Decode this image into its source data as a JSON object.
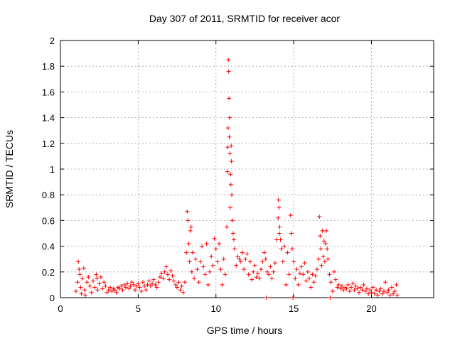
{
  "chart_data": {
    "type": "scatter",
    "title": "Day 307 of 2011, SRMTID for receiver acor",
    "xlabel": "GPS time / hours",
    "ylabel": "SRMTID / TECUs",
    "xlim": [
      0,
      24
    ],
    "ylim": [
      0,
      2
    ],
    "xticks": [
      0,
      5,
      10,
      15,
      20
    ],
    "yticks": [
      0,
      0.2,
      0.4,
      0.6,
      0.8,
      1,
      1.2,
      1.4,
      1.6,
      1.8,
      2
    ],
    "xtick_labels": [
      "0",
      "5",
      "10",
      "15",
      "20"
    ],
    "ytick_labels": [
      "0",
      "0.2",
      "0.4",
      "0.6",
      "0.8",
      "1",
      "1.2",
      "1.4",
      "1.6",
      "1.8",
      "2"
    ],
    "grid": true,
    "marker": "plus",
    "color": "#ff0000",
    "series": [
      {
        "points": [
          [
            1.0,
            0.05
          ],
          [
            1.1,
            0.12
          ],
          [
            1.15,
            0.28
          ],
          [
            1.2,
            0.22
          ],
          [
            1.25,
            0.18
          ],
          [
            1.3,
            0.08
          ],
          [
            1.35,
            0.03
          ],
          [
            1.4,
            0.15
          ],
          [
            1.5,
            0.23
          ],
          [
            1.55,
            0.06
          ],
          [
            1.6,
            0.02
          ],
          [
            1.7,
            0.12
          ],
          [
            1.8,
            0.16
          ],
          [
            1.9,
            0.09
          ],
          [
            2.0,
            0.04
          ],
          [
            2.1,
            0.13
          ],
          [
            2.2,
            0.08
          ],
          [
            2.3,
            0.18
          ],
          [
            2.35,
            0.15
          ],
          [
            2.4,
            0.06
          ],
          [
            2.5,
            0.11
          ],
          [
            2.6,
            0.16
          ],
          [
            2.7,
            0.07
          ],
          [
            2.8,
            0.12
          ],
          [
            2.9,
            0.09
          ],
          [
            3.0,
            0.04
          ],
          [
            3.1,
            0.06
          ],
          [
            3.2,
            0.08
          ],
          [
            3.3,
            0.05
          ],
          [
            3.4,
            0.07
          ],
          [
            3.5,
            0.06
          ],
          [
            3.6,
            0.04
          ],
          [
            3.7,
            0.08
          ],
          [
            3.8,
            0.07
          ],
          [
            3.9,
            0.09
          ],
          [
            4.0,
            0.06
          ],
          [
            4.1,
            0.1
          ],
          [
            4.2,
            0.08
          ],
          [
            4.3,
            0.11
          ],
          [
            4.4,
            0.07
          ],
          [
            4.5,
            0.09
          ],
          [
            4.6,
            0.12
          ],
          [
            4.7,
            0.1
          ],
          [
            4.8,
            0.06
          ],
          [
            4.9,
            0.09
          ],
          [
            5.0,
            0.11
          ],
          [
            5.1,
            0.08
          ],
          [
            5.2,
            0.05
          ],
          [
            5.3,
            0.12
          ],
          [
            5.4,
            0.09
          ],
          [
            5.5,
            0.06
          ],
          [
            5.6,
            0.1
          ],
          [
            5.7,
            0.13
          ],
          [
            5.8,
            0.09
          ],
          [
            5.9,
            0.11
          ],
          [
            6.0,
            0.14
          ],
          [
            6.1,
            0.1
          ],
          [
            6.2,
            0.08
          ],
          [
            6.3,
            0.12
          ],
          [
            6.4,
            0.16
          ],
          [
            6.5,
            0.19
          ],
          [
            6.6,
            0.15
          ],
          [
            6.7,
            0.2
          ],
          [
            6.8,
            0.24
          ],
          [
            6.9,
            0.18
          ],
          [
            7.0,
            0.14
          ],
          [
            7.1,
            0.21
          ],
          [
            7.2,
            0.17
          ],
          [
            7.3,
            0.13
          ],
          [
            7.4,
            0.1
          ],
          [
            7.5,
            0.08
          ],
          [
            7.6,
            0.12
          ],
          [
            7.7,
            0.06
          ],
          [
            7.8,
            0.09
          ],
          [
            7.9,
            0.04
          ],
          [
            8.0,
            0.12
          ],
          [
            8.1,
            0.35
          ],
          [
            8.15,
            0.67
          ],
          [
            8.2,
            0.6
          ],
          [
            8.25,
            0.42
          ],
          [
            8.3,
            0.28
          ],
          [
            8.35,
            0.52
          ],
          [
            8.4,
            0.55
          ],
          [
            8.45,
            0.2
          ],
          [
            8.5,
            0.35
          ],
          [
            8.6,
            0.15
          ],
          [
            8.7,
            0.3
          ],
          [
            8.8,
            0.22
          ],
          [
            8.9,
            0.12
          ],
          [
            9.0,
            0.28
          ],
          [
            9.1,
            0.4
          ],
          [
            9.2,
            0.24
          ],
          [
            9.3,
            0.18
          ],
          [
            9.4,
            0.42
          ],
          [
            9.5,
            0.1
          ],
          [
            9.6,
            0.2
          ],
          [
            9.7,
            0.32
          ],
          [
            9.8,
            0.25
          ],
          [
            9.9,
            0.46
          ],
          [
            10.0,
            0.38
          ],
          [
            10.1,
            0.28
          ],
          [
            10.2,
            0.42
          ],
          [
            10.3,
            0.22
          ],
          [
            10.4,
            0.1
          ],
          [
            10.5,
            0.3
          ],
          [
            10.6,
            0.18
          ],
          [
            10.7,
            0.55
          ],
          [
            10.72,
            0.98
          ],
          [
            10.75,
            1.17
          ],
          [
            10.78,
            1.32
          ],
          [
            10.8,
            1.85
          ],
          [
            10.82,
            1.76
          ],
          [
            10.84,
            1.55
          ],
          [
            10.86,
            1.25
          ],
          [
            10.88,
            1.4
          ],
          [
            10.9,
            1.12
          ],
          [
            10.92,
            0.7
          ],
          [
            10.94,
            0.96
          ],
          [
            10.96,
            0.88
          ],
          [
            10.98,
            1.18
          ],
          [
            11.0,
            1.06
          ],
          [
            11.02,
            0.8
          ],
          [
            11.05,
            0.6
          ],
          [
            11.1,
            0.5
          ],
          [
            11.15,
            0.45
          ],
          [
            11.2,
            0.38
          ],
          [
            11.3,
            0.25
          ],
          [
            11.4,
            0.32
          ],
          [
            11.5,
            0.3
          ],
          [
            11.6,
            0.28
          ],
          [
            11.7,
            0.35
          ],
          [
            11.8,
            0.22
          ],
          [
            11.9,
            0.3
          ],
          [
            12.0,
            0.34
          ],
          [
            12.1,
            0.18
          ],
          [
            12.2,
            0.28
          ],
          [
            12.3,
            0.14
          ],
          [
            12.4,
            0.2
          ],
          [
            12.5,
            0.25
          ],
          [
            12.6,
            0.16
          ],
          [
            12.7,
            0.19
          ],
          [
            12.8,
            0.15
          ],
          [
            12.9,
            0.22
          ],
          [
            13.0,
            0.28
          ],
          [
            13.1,
            0.35
          ],
          [
            13.2,
            0.3
          ],
          [
            13.25,
            0.0
          ],
          [
            13.3,
            0.2
          ],
          [
            13.4,
            0.18
          ],
          [
            13.5,
            0.24
          ],
          [
            13.6,
            0.15
          ],
          [
            13.7,
            0.2
          ],
          [
            13.8,
            0.27
          ],
          [
            13.9,
            0.45
          ],
          [
            14.0,
            0.62
          ],
          [
            14.02,
            0.76
          ],
          [
            14.05,
            0.7
          ],
          [
            14.08,
            0.5
          ],
          [
            14.1,
            0.55
          ],
          [
            14.15,
            0.45
          ],
          [
            14.2,
            0.38
          ],
          [
            14.3,
            0.28
          ],
          [
            14.4,
            0.4
          ],
          [
            14.5,
            0.1
          ],
          [
            14.6,
            0.35
          ],
          [
            14.7,
            0.18
          ],
          [
            14.8,
            0.64
          ],
          [
            14.85,
            0.5
          ],
          [
            14.9,
            0.38
          ],
          [
            14.95,
            0.0
          ],
          [
            15.0,
            0.28
          ],
          [
            15.1,
            0.15
          ],
          [
            15.2,
            0.22
          ],
          [
            15.3,
            0.1
          ],
          [
            15.4,
            0.19
          ],
          [
            15.5,
            0.24
          ],
          [
            15.6,
            0.18
          ],
          [
            15.7,
            0.27
          ],
          [
            15.8,
            0.13
          ],
          [
            15.9,
            0.2
          ],
          [
            16.0,
            0.15
          ],
          [
            16.1,
            0.08
          ],
          [
            16.2,
            0.18
          ],
          [
            16.3,
            0.12
          ],
          [
            16.4,
            0.17
          ],
          [
            16.5,
            0.22
          ],
          [
            16.6,
            0.3
          ],
          [
            16.65,
            0.63
          ],
          [
            16.7,
            0.48
          ],
          [
            16.75,
            0.38
          ],
          [
            16.8,
            0.25
          ],
          [
            16.85,
            0.52
          ],
          [
            16.9,
            0.32
          ],
          [
            16.95,
            0.44
          ],
          [
            17.0,
            0.28
          ],
          [
            17.05,
            0.42
          ],
          [
            17.1,
            0.52
          ],
          [
            17.15,
            0.38
          ],
          [
            17.2,
            0.3
          ],
          [
            17.3,
            0.18
          ],
          [
            17.35,
            0.0
          ],
          [
            17.4,
            0.12
          ],
          [
            17.5,
            0.05
          ],
          [
            17.6,
            0.2
          ],
          [
            17.7,
            0.14
          ],
          [
            17.8,
            0.08
          ],
          [
            17.9,
            0.1
          ],
          [
            18.0,
            0.07
          ],
          [
            18.1,
            0.09
          ],
          [
            18.2,
            0.06
          ],
          [
            18.3,
            0.08
          ],
          [
            18.4,
            0.07
          ],
          [
            18.5,
            0.1
          ],
          [
            18.6,
            0.05
          ],
          [
            18.7,
            0.08
          ],
          [
            18.8,
            0.11
          ],
          [
            18.9,
            0.06
          ],
          [
            19.0,
            0.09
          ],
          [
            19.1,
            0.07
          ],
          [
            19.2,
            0.04
          ],
          [
            19.3,
            0.08
          ],
          [
            19.4,
            0.06
          ],
          [
            19.5,
            0.1
          ],
          [
            19.6,
            0.05
          ],
          [
            19.7,
            0.07
          ],
          [
            19.8,
            0.03
          ],
          [
            19.9,
            0.06
          ],
          [
            20.0,
            0.04
          ],
          [
            20.1,
            0.08
          ],
          [
            20.2,
            0.03
          ],
          [
            20.3,
            0.06
          ],
          [
            20.4,
            0.02
          ],
          [
            20.5,
            0.05
          ],
          [
            20.6,
            0.07
          ],
          [
            20.7,
            0.03
          ],
          [
            20.8,
            0.05
          ],
          [
            20.9,
            0.12
          ],
          [
            21.0,
            0.04
          ],
          [
            21.1,
            0.06
          ],
          [
            21.2,
            0.02
          ],
          [
            21.3,
            0.08
          ],
          [
            21.4,
            0.03
          ],
          [
            21.5,
            0.05
          ],
          [
            21.6,
            0.1
          ],
          [
            21.65,
            0.02
          ]
        ]
      }
    ]
  }
}
